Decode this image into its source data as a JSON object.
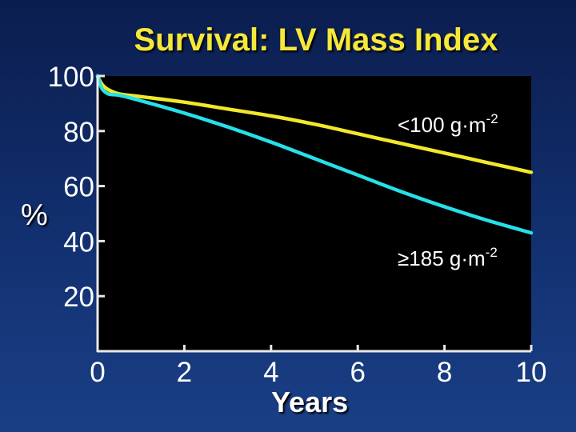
{
  "chart_data": {
    "type": "line",
    "title": "Survival: LV Mass Index",
    "xlabel": "Years",
    "ylabel": "%",
    "xlim": [
      0,
      10
    ],
    "ylim": [
      0,
      100
    ],
    "xticks": [
      0,
      2,
      4,
      6,
      8,
      10
    ],
    "yticks": [
      20,
      40,
      60,
      80,
      100
    ],
    "series": [
      {
        "name": "<100 g·m",
        "superscript": "-2",
        "color": "#f2e82a",
        "x": [
          0,
          0.1,
          0.25,
          0.5,
          1,
          2,
          3,
          4,
          5,
          6,
          7,
          8,
          9,
          10
        ],
        "y": [
          100,
          97,
          95,
          93.5,
          92.5,
          90.5,
          88,
          85.5,
          82.5,
          79,
          75.5,
          72,
          68.5,
          65
        ]
      },
      {
        "name": "≥185 g·m",
        "superscript": "-2",
        "color": "#26e0e8",
        "x": [
          0,
          0.1,
          0.25,
          0.5,
          1,
          2,
          3,
          4,
          5,
          6,
          7,
          8,
          9,
          10
        ],
        "y": [
          100,
          95.5,
          93.5,
          93,
          91,
          86.5,
          81.5,
          76,
          70,
          64,
          58,
          52.5,
          47.5,
          43
        ]
      }
    ]
  }
}
